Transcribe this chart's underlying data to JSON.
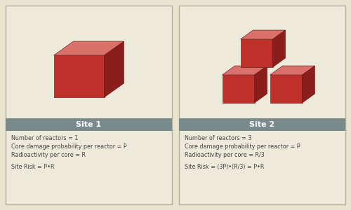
{
  "bg_color": "#e8e4d0",
  "panel_bg": "#edeadc",
  "border_color": "#b8b09a",
  "header_bg": "#7a8a8a",
  "header_text_color": "#ffffff",
  "text_color": "#444444",
  "cube_front_color": "#c0302a",
  "cube_top_color": "#d9706a",
  "cube_side_color": "#8b1e1a",
  "site1_title": "Site 1",
  "site2_title": "Site 2",
  "site1_lines": [
    "Number of reactors = 1",
    "Core damage probability per reactor = P",
    "Radioactivity per core = R",
    "",
    "Site Risk = P•R"
  ],
  "site2_lines": [
    "Number of reactors = 3",
    "Core damage probability per reactor = P",
    "Radioactivity per core = R/3",
    "",
    "Site Risk = (3P)•(R/3) = P•R"
  ],
  "figsize": [
    5.0,
    3.0
  ],
  "dpi": 100
}
